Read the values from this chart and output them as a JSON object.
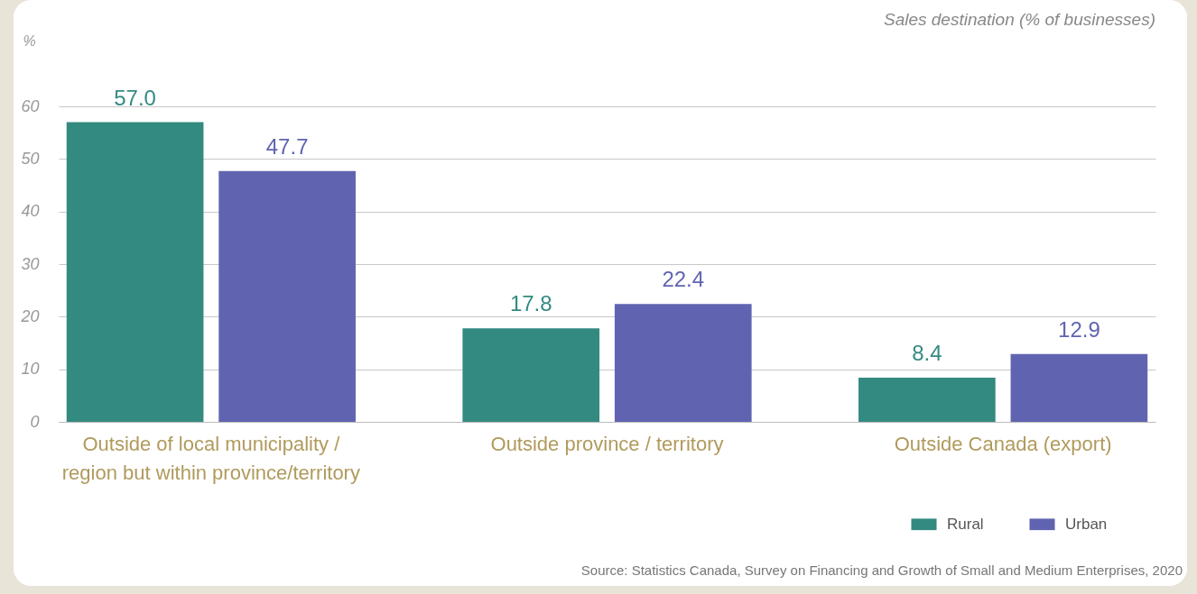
{
  "chart_data": {
    "type": "bar",
    "title": "Sales destination (% of businesses)",
    "ylabel": "%",
    "categories": [
      "Outside of local municipality / region but within province/territory",
      "Outside province / territory",
      "Outside Canada (export)"
    ],
    "series": [
      {
        "name": "Rural",
        "color": "#338a80",
        "values": [
          57.0,
          17.8,
          8.4
        ],
        "value_labels": [
          "57.0",
          "17.8",
          "8.4"
        ]
      },
      {
        "name": "Urban",
        "color": "#6064b0",
        "values": [
          47.7,
          22.4,
          12.9
        ],
        "value_labels": [
          "47.7",
          "22.4",
          "12.9"
        ]
      }
    ],
    "ylim": [
      0,
      60
    ],
    "yticks": [
      0,
      10,
      20,
      30,
      40,
      50,
      60
    ],
    "grid": "y",
    "legend": "bottom right",
    "annotations": [
      "Source: Statistics Canada, Survey on Financing and Growth of Small and Medium Enterprises, 2020"
    ]
  }
}
